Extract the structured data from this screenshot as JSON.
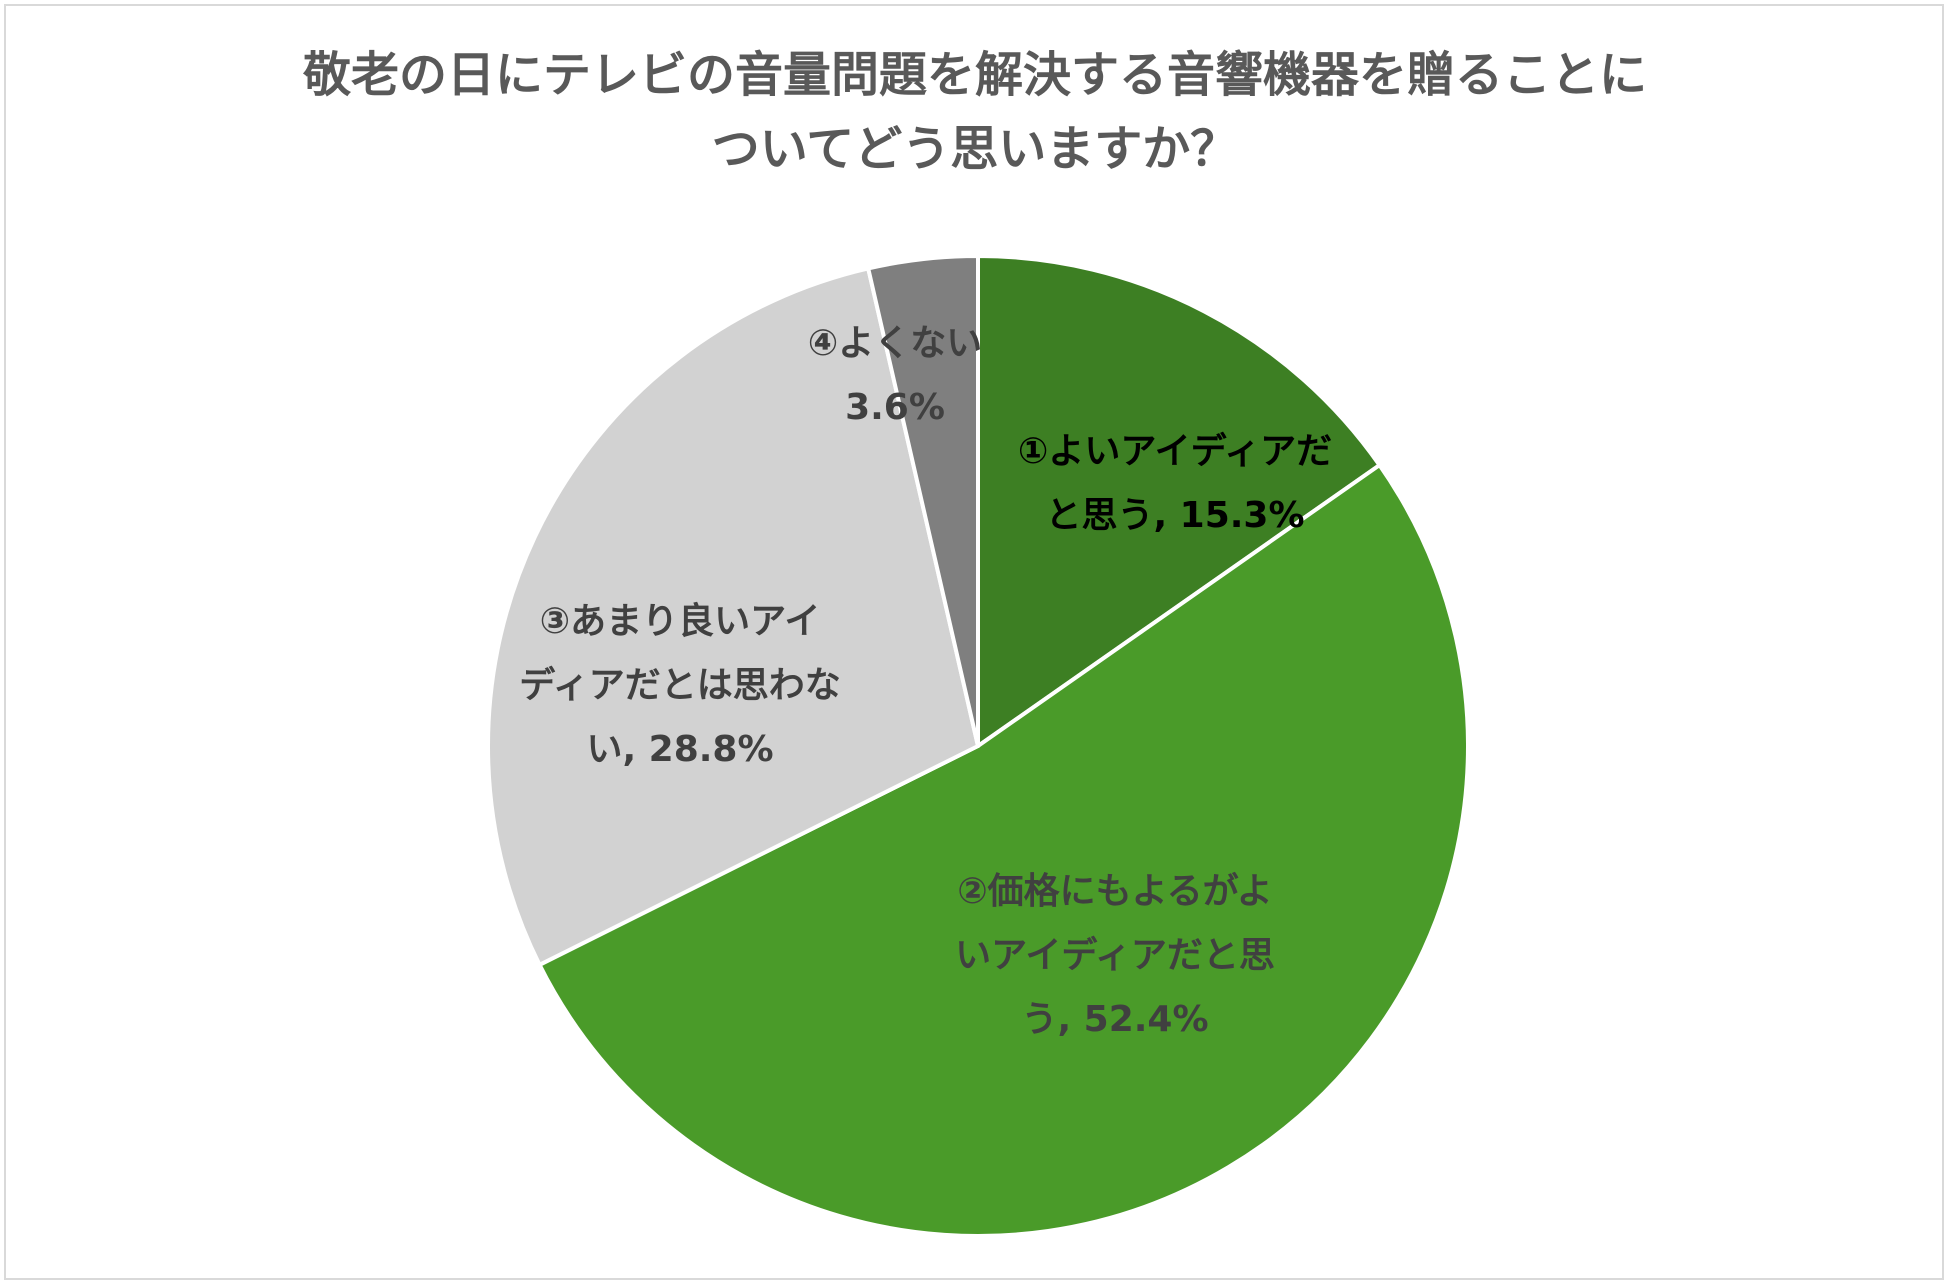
{
  "chart_data": {
    "type": "pie",
    "title_lines": [
      "敬老の日にテレビの音量問題を解決する音響機器を贈ることに",
      "ついてどう思いますか？"
    ],
    "slices": [
      {
        "label_lines": [
          "①よいアイディアだ",
          "と思う, 15.3%"
        ],
        "value": 15.3,
        "color": "#3d7f23",
        "text_color": "#000000"
      },
      {
        "label_lines": [
          "②価格にもよるがよ",
          "いアイディアだと思",
          "う, 52.4%"
        ],
        "value": 52.4,
        "color": "#4a9b29",
        "text_color": "#404040"
      },
      {
        "label_lines": [
          "③あまり良いアイ",
          "ディアだとは思わな",
          "い, 28.8%"
        ],
        "value": 28.8,
        "color": "#d2d2d2",
        "text_color": "#404040"
      },
      {
        "label_lines": [
          "④よくない",
          "3.6%"
        ],
        "value": 3.6,
        "color": "#7f7f7f",
        "text_color": "#404040"
      }
    ],
    "start_angle": "12 o'clock",
    "direction": "clockwise",
    "legend": "none"
  }
}
